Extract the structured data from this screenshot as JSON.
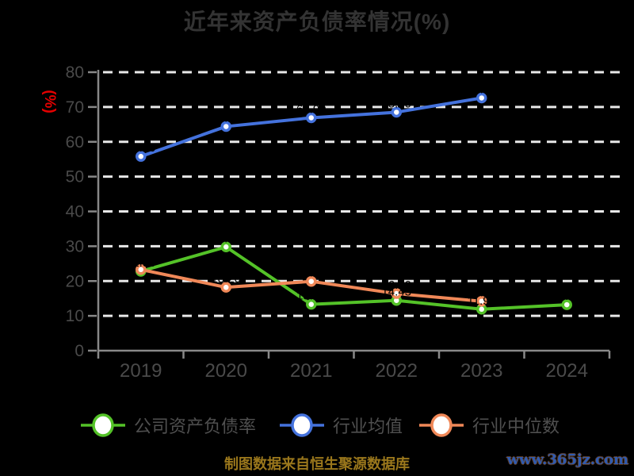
{
  "chart_data": {
    "type": "line",
    "title": "近年来资产负债率情况(%)",
    "ylabel": "(%)",
    "categories": [
      "2019",
      "2020",
      "2021",
      "2022",
      "2023",
      "2024"
    ],
    "ylim": [
      0,
      80
    ],
    "yticks": [
      0,
      10,
      20,
      30,
      40,
      50,
      60,
      70,
      80
    ],
    "grid": "horizontal-dashed",
    "legend_position": "bottom",
    "point_label_color": "#000000",
    "series": [
      {
        "name": "公司资产负债率",
        "color": "#54c228",
        "values": [
          22.8,
          29.8,
          13.3,
          14.43,
          11.9,
          13.2
        ]
      },
      {
        "name": "行业均值",
        "color": "#4472dd",
        "values": [
          55.8,
          64.4,
          66.9,
          68.5,
          72.6
        ]
      },
      {
        "name": "行业中位数",
        "color": "#f08858",
        "values": [
          23.3,
          18.2,
          19.9,
          16.4,
          14.2
        ]
      }
    ]
  },
  "footer": {
    "credit": "制图数据来自恒生聚源数据库",
    "watermark": "www.365jz.com"
  },
  "colors": {
    "background": "#000000",
    "title": "#333333",
    "axis": "#888888",
    "tick_label": "#4a4a4a",
    "legend_label": "#4f4f4f",
    "gridline": "#e8e8e8",
    "ylabel": "#e60000",
    "credit": "#9a771c",
    "watermark": "#2f5bb0"
  }
}
